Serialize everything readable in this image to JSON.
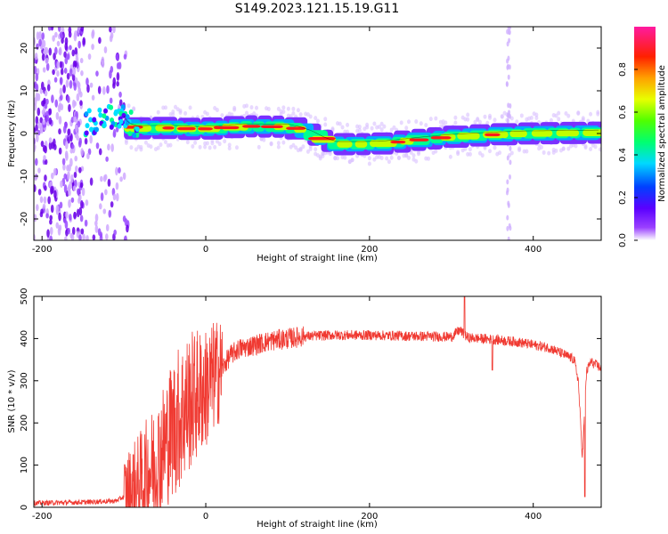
{
  "figure_title": "S149.2023.121.15.19.G11",
  "colors": {
    "snr_line": "#f03a32",
    "axis": "#000000",
    "colorbar_stops": [
      "#7a00d6",
      "#3a00ff",
      "#0060ff",
      "#00e0ff",
      "#00ff60",
      "#b0ff00",
      "#ffd000",
      "#ff6000",
      "#ff0000",
      "#ff1aa0"
    ]
  },
  "chart_data": [
    {
      "type": "heatmap",
      "title": "S149.2023.121.15.19.G11",
      "xlabel": "Height of straight line (km)",
      "ylabel": "Frequency (Hz)",
      "xlim": [
        -210,
        483
      ],
      "ylim": [
        -25,
        25
      ],
      "xticks": [
        -200,
        0,
        200,
        400
      ],
      "yticks": [
        -20,
        -10,
        0,
        10,
        20
      ],
      "colorbar": {
        "label": "Normalized spectral amplitude",
        "range": [
          0,
          1
        ],
        "ticks": [
          "0.0",
          "0.2",
          "0.4",
          "0.6",
          "0.8"
        ]
      },
      "ridge": {
        "description_points_x": [
          -150,
          -130,
          -110,
          -100,
          -95,
          -85,
          -60,
          -40,
          -10,
          20,
          50,
          80,
          100,
          115,
          130,
          145,
          160,
          190,
          220,
          245,
          270,
          300,
          330,
          360,
          390,
          430,
          483
        ],
        "frequency_hz": [
          1.5,
          2.5,
          3.5,
          3.5,
          2.0,
          1.2,
          1.3,
          1.3,
          1.0,
          1.3,
          1.7,
          1.6,
          1.6,
          1.0,
          0.0,
          -1.5,
          -2.5,
          -2.5,
          -2.3,
          -1.8,
          -1.3,
          -0.8,
          -0.5,
          -0.2,
          0.0,
          0.1,
          0.2
        ]
      },
      "noise_region_x": [
        -210,
        -95
      ]
    },
    {
      "type": "line",
      "xlabel": "Height of straight line (km)",
      "ylabel": "SNR (10 * v/v)",
      "xlim": [
        -210,
        483
      ],
      "ylim": [
        0,
        500
      ],
      "xticks": [
        -200,
        0,
        200,
        400
      ],
      "yticks": [
        0,
        100,
        200,
        300,
        400,
        500
      ],
      "series": [
        {
          "x": [
            -210,
            -150,
            -110,
            -100,
            -90,
            -80,
            -60,
            -50,
            -40,
            -30,
            -20,
            -10,
            0,
            10,
            20,
            30,
            40,
            60,
            80,
            100,
            120,
            150,
            200,
            250,
            300,
            310,
            320,
            350,
            380,
            420,
            440,
            450,
            455,
            460,
            465,
            470,
            483
          ],
          "y": [
            10,
            12,
            15,
            25,
            40,
            60,
            110,
            150,
            190,
            220,
            250,
            270,
            280,
            310,
            330,
            360,
            375,
            385,
            395,
            400,
            405,
            408,
            408,
            406,
            404,
            420,
            402,
            398,
            392,
            378,
            360,
            350,
            300,
            120,
            320,
            345,
            330
          ],
          "spikes": [
            {
              "x": 316,
              "y": 505
            },
            {
              "x": 463,
              "y": 25
            },
            {
              "x": 350,
              "y": 325
            }
          ]
        }
      ]
    }
  ]
}
